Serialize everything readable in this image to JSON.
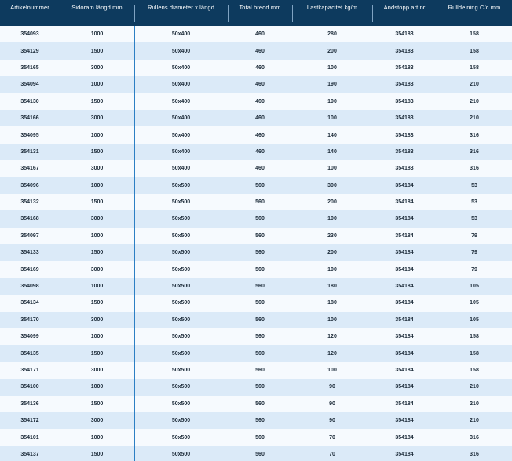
{
  "table": {
    "headers": [
      "Artikelnummer",
      "Sidoram längd mm",
      "Rullens diameter x längd",
      "Total bredd mm",
      "Lastkapacitet kg/m",
      "Ändstopp art nr",
      "Rulldelning C/c mm"
    ],
    "rows": [
      [
        "354093",
        "1000",
        "50x400",
        "460",
        "280",
        "354183",
        "158"
      ],
      [
        "354129",
        "1500",
        "50x400",
        "460",
        "200",
        "354183",
        "158"
      ],
      [
        "354165",
        "3000",
        "50x400",
        "460",
        "100",
        "354183",
        "158"
      ],
      [
        "354094",
        "1000",
        "50x400",
        "460",
        "190",
        "354183",
        "210"
      ],
      [
        "354130",
        "1500",
        "50x400",
        "460",
        "190",
        "354183",
        "210"
      ],
      [
        "354166",
        "3000",
        "50x400",
        "460",
        "100",
        "354183",
        "210"
      ],
      [
        "354095",
        "1000",
        "50x400",
        "460",
        "140",
        "354183",
        "316"
      ],
      [
        "354131",
        "1500",
        "50x400",
        "460",
        "140",
        "354183",
        "316"
      ],
      [
        "354167",
        "3000",
        "50x400",
        "460",
        "100",
        "354183",
        "316"
      ],
      [
        "354096",
        "1000",
        "50x500",
        "560",
        "300",
        "354184",
        "53"
      ],
      [
        "354132",
        "1500",
        "50x500",
        "560",
        "200",
        "354184",
        "53"
      ],
      [
        "354168",
        "3000",
        "50x500",
        "560",
        "100",
        "354184",
        "53"
      ],
      [
        "354097",
        "1000",
        "50x500",
        "560",
        "230",
        "354184",
        "79"
      ],
      [
        "354133",
        "1500",
        "50x500",
        "560",
        "200",
        "354184",
        "79"
      ],
      [
        "354169",
        "3000",
        "50x500",
        "560",
        "100",
        "354184",
        "79"
      ],
      [
        "354098",
        "1000",
        "50x500",
        "560",
        "180",
        "354184",
        "105"
      ],
      [
        "354134",
        "1500",
        "50x500",
        "560",
        "180",
        "354184",
        "105"
      ],
      [
        "354170",
        "3000",
        "50x500",
        "560",
        "100",
        "354184",
        "105"
      ],
      [
        "354099",
        "1000",
        "50x500",
        "560",
        "120",
        "354184",
        "158"
      ],
      [
        "354135",
        "1500",
        "50x500",
        "560",
        "120",
        "354184",
        "158"
      ],
      [
        "354171",
        "3000",
        "50x500",
        "560",
        "100",
        "354184",
        "158"
      ],
      [
        "354100",
        "1000",
        "50x500",
        "560",
        "90",
        "354184",
        "210"
      ],
      [
        "354136",
        "1500",
        "50x500",
        "560",
        "90",
        "354184",
        "210"
      ],
      [
        "354172",
        "3000",
        "50x500",
        "560",
        "90",
        "354184",
        "210"
      ],
      [
        "354101",
        "1000",
        "50x500",
        "560",
        "70",
        "354184",
        "316"
      ],
      [
        "354137",
        "1500",
        "50x500",
        "560",
        "70",
        "354184",
        "316"
      ]
    ]
  }
}
